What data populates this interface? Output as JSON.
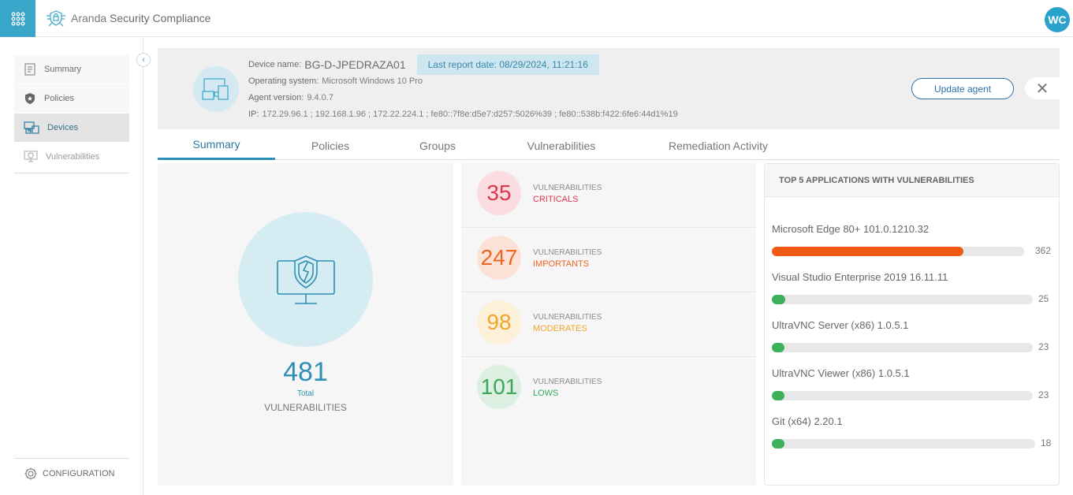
{
  "header": {
    "brand_prefix": "Aranda",
    "brand_name": "Security Compliance",
    "user_initials": "WC"
  },
  "sidebar": {
    "items": [
      {
        "label": "Summary",
        "icon": "summary-icon"
      },
      {
        "label": "Policies",
        "icon": "shield-icon"
      },
      {
        "label": "Devices",
        "icon": "devices-icon"
      },
      {
        "label": "Vulnerabilities",
        "icon": "vulnerability-icon"
      }
    ],
    "config_label": "CONFIGURATION"
  },
  "device": {
    "name_label": "Device name:",
    "name": "BG-D-JPEDRAZA01",
    "last_report_label": "Last report date:",
    "last_report": "08/29/2024, 11:21:16",
    "os_label": "Operating system:",
    "os": "Microsoft Windows 10 Pro",
    "agent_label": "Agent version:",
    "agent_version": "9.4.0.7",
    "ip_label": "IP:",
    "ip": "172.29.96.1 ; 192.168.1.96 ; 172.22.224.1 ; fe80::7f8e:d5e7:d257:5026%39 ; fe80::538b:f422:6fe6:44d1%19",
    "update_button": "Update agent",
    "close_glyph": "✕"
  },
  "tabs": [
    {
      "label": "Summary",
      "active": true
    },
    {
      "label": "Policies",
      "active": false
    },
    {
      "label": "Groups",
      "active": false
    },
    {
      "label": "Vulnerabilities",
      "active": false
    },
    {
      "label": "Remediation Activity",
      "active": false
    }
  ],
  "total": {
    "count": "481",
    "label": "Total",
    "sublabel": "VULNERABILITIES"
  },
  "severities": [
    {
      "count": "35",
      "title": "VULNERABILITIES",
      "level": "CRITICALS",
      "color": "#e0364f",
      "bg": "#fbdde1"
    },
    {
      "count": "247",
      "title": "VULNERABILITIES",
      "level": "IMPORTANTS",
      "color": "#ef6422",
      "bg": "#fce2d6"
    },
    {
      "count": "98",
      "title": "VULNERABILITIES",
      "level": "MODERATES",
      "color": "#f2a52a",
      "bg": "#fdf0d9"
    },
    {
      "count": "101",
      "title": "VULNERABILITIES",
      "level": "LOWS",
      "color": "#3aa85a",
      "bg": "#dcefe1"
    }
  ],
  "top_apps": {
    "title": "TOP 5 APPLICATIONS WITH VULNERABILITIES",
    "max": 362,
    "apps": [
      {
        "name": "Microsoft Edge 80+ 101.0.1210.32",
        "count": 362,
        "color": "#f05a14"
      },
      {
        "name": "Visual Studio Enterprise 2019 16.11.11",
        "count": 25,
        "color": "#3db15a"
      },
      {
        "name": "UltraVNC Server (x86) 1.0.5.1",
        "count": 23,
        "color": "#3db15a"
      },
      {
        "name": "UltraVNC Viewer (x86) 1.0.5.1",
        "count": 23,
        "color": "#3db15a"
      },
      {
        "name": "Git (x64) 2.20.1",
        "count": 18,
        "color": "#3db15a"
      }
    ]
  }
}
